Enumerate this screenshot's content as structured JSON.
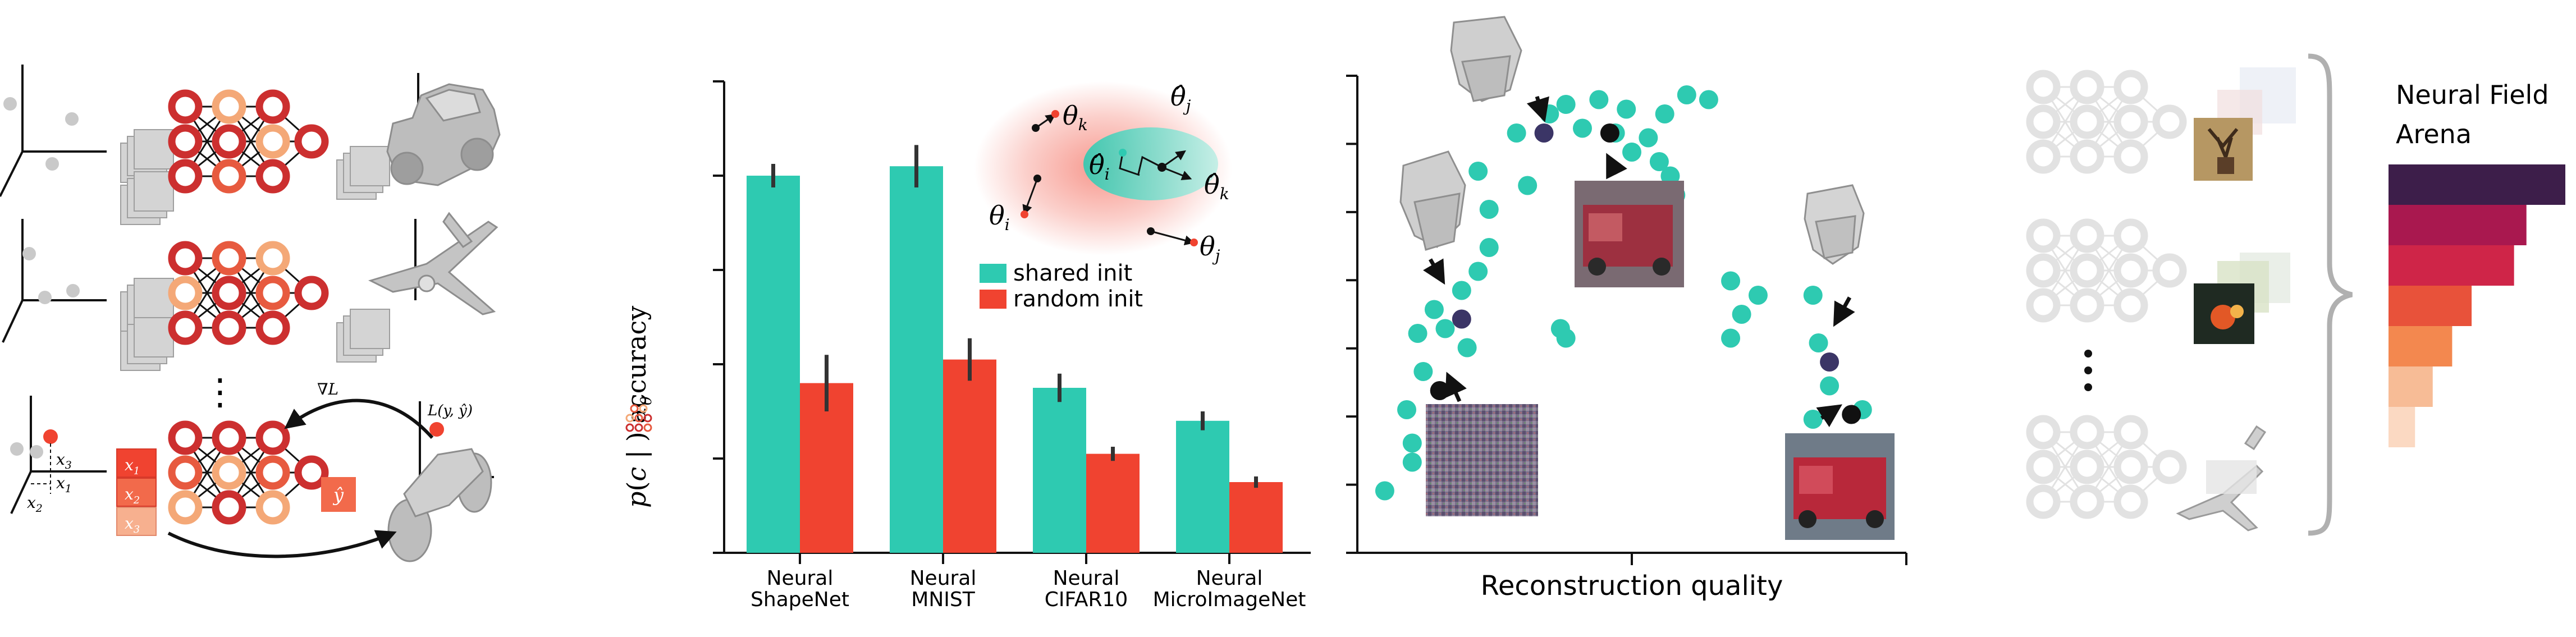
{
  "panel_a": {
    "math": {
      "x1": "x",
      "x1_sub": "1",
      "x2": "x",
      "x2_sub": "2",
      "x3": "x",
      "x3_sub": "3",
      "yhat": "ŷ",
      "grad": "∇L",
      "loss": "L(y, ŷ)",
      "dots": "⋮"
    }
  },
  "chart_data": [
    {
      "type": "bar",
      "ylabel": "p(c | θ) accuracy",
      "categories": [
        "Neural\nShapeNet",
        "Neural\nMNIST",
        "Neural\nCIFAR10",
        "Neural\nMicroImageNet"
      ],
      "ylim": [
        0,
        1.0
      ],
      "series": [
        {
          "name": "shared init",
          "values": [
            0.8,
            0.82,
            0.35,
            0.28
          ],
          "errors": [
            0.025,
            0.045,
            0.03,
            0.02
          ]
        },
        {
          "name": "random init",
          "values": [
            0.36,
            0.41,
            0.21,
            0.15
          ],
          "errors": [
            0.06,
            0.045,
            0.015,
            0.012
          ]
        }
      ],
      "legend": [
        "shared init",
        "random init"
      ],
      "inset": {
        "theta_k": "θk",
        "theta_i": "θi",
        "theta_j": "θj",
        "theta_hat_i": "θ̂i",
        "theta_hat_j": "θ̂j",
        "theta_hat_k": "θ̂k"
      }
    },
    {
      "type": "scatter",
      "xlabel": "Reconstruction quality",
      "points": [
        [
          0.05,
          0.13
        ],
        [
          0.1,
          0.23
        ],
        [
          0.09,
          0.3
        ],
        [
          0.1,
          0.19
        ],
        [
          0.12,
          0.38
        ],
        [
          0.11,
          0.46
        ],
        [
          0.14,
          0.51
        ],
        [
          0.16,
          0.47
        ],
        [
          0.2,
          0.43
        ],
        [
          0.19,
          0.55
        ],
        [
          0.22,
          0.59
        ],
        [
          0.24,
          0.64
        ],
        [
          0.24,
          0.72
        ],
        [
          0.22,
          0.8
        ],
        [
          0.31,
          0.77
        ],
        [
          0.29,
          0.88
        ],
        [
          0.35,
          0.92
        ],
        [
          0.38,
          0.94
        ],
        [
          0.41,
          0.89
        ],
        [
          0.44,
          0.95
        ],
        [
          0.47,
          0.88
        ],
        [
          0.5,
          0.84
        ],
        [
          0.53,
          0.87
        ],
        [
          0.56,
          0.92
        ],
        [
          0.55,
          0.82
        ],
        [
          0.57,
          0.79
        ],
        [
          0.6,
          0.96
        ],
        [
          0.64,
          0.95
        ],
        [
          0.49,
          0.93
        ],
        [
          0.58,
          0.75
        ],
        [
          0.37,
          0.47
        ],
        [
          0.38,
          0.45
        ],
        [
          0.68,
          0.57
        ],
        [
          0.73,
          0.54
        ],
        [
          0.68,
          0.45
        ],
        [
          0.7,
          0.5
        ],
        [
          0.83,
          0.54
        ],
        [
          0.84,
          0.44
        ],
        [
          0.86,
          0.35
        ],
        [
          0.83,
          0.28
        ],
        [
          0.92,
          0.3
        ]
      ],
      "highlighted_points": [
        [
          0.19,
          0.49
        ],
        [
          0.34,
          0.88
        ],
        [
          0.86,
          0.4
        ]
      ],
      "black_points": [
        [
          0.15,
          0.34
        ],
        [
          0.46,
          0.88
        ],
        [
          0.9,
          0.29
        ]
      ]
    },
    {
      "type": "bar",
      "orientation": "horizontal",
      "title": "Neural Field\nArena",
      "values": [
        1.0,
        0.78,
        0.71,
        0.47,
        0.36,
        0.25,
        0.15
      ],
      "colors": [
        "#3d1e4a",
        "#a9184f",
        "#cf2548",
        "#e8523a",
        "#f3884f",
        "#f7bc96",
        "#fbd9c2"
      ]
    }
  ],
  "colors": {
    "teal": "#2ecab1",
    "red": "#f04330",
    "dark_node": "#cc2f2f",
    "mid_node": "#e75a3f",
    "light_node": "#f4a877",
    "purple": "#3b3566"
  }
}
